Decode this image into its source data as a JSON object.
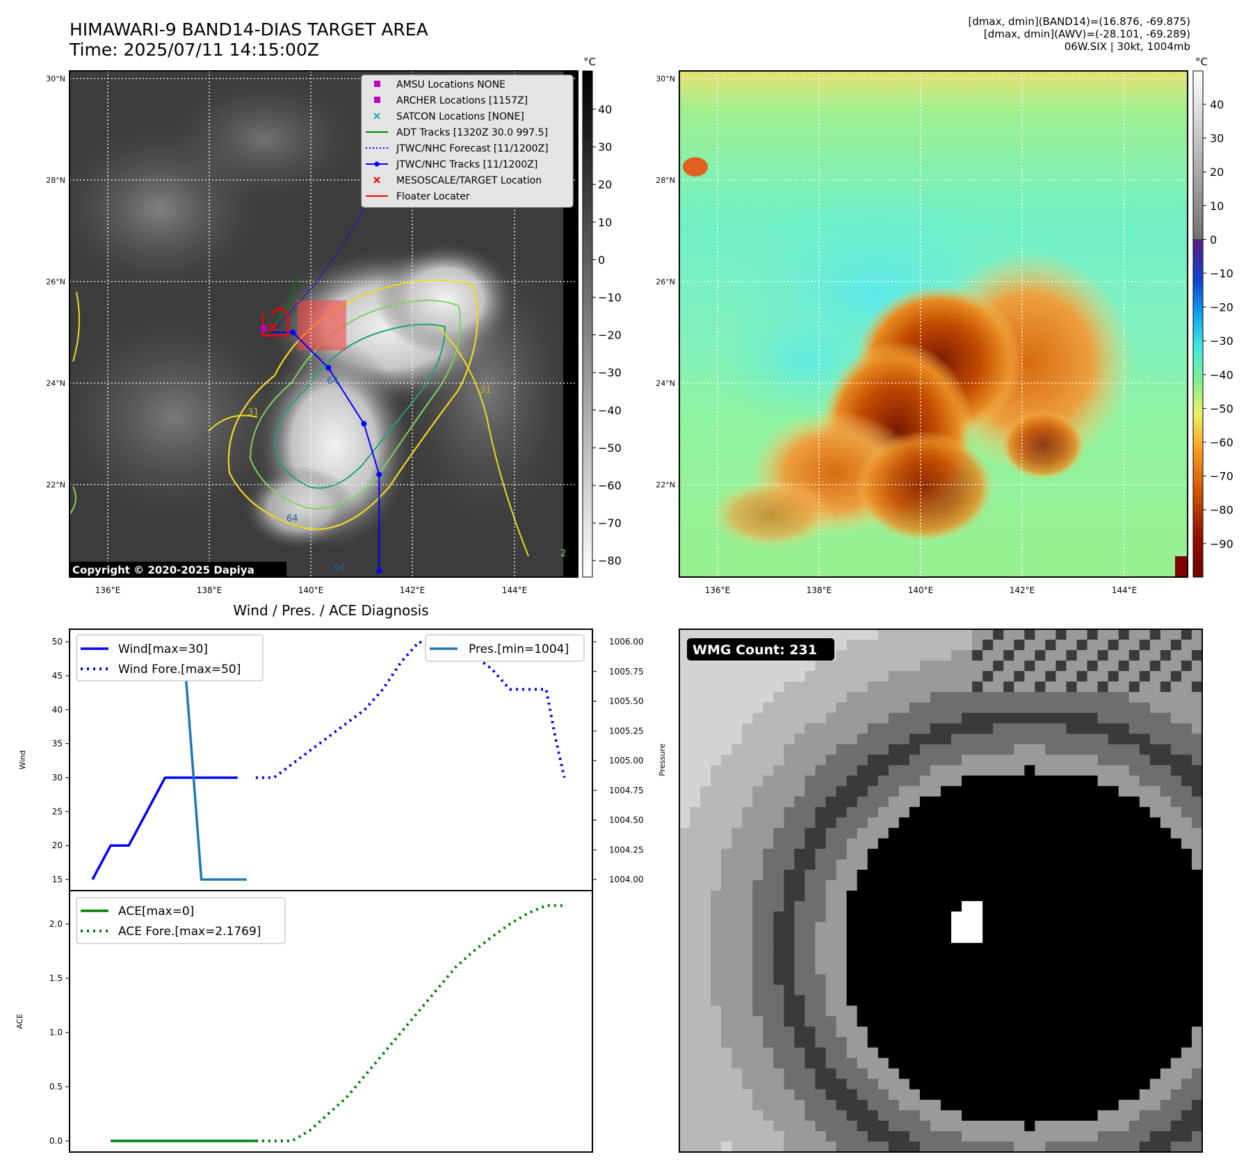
{
  "header": {
    "title_line1": "HIMAWARI-9 BAND14-DIAS TARGET AREA",
    "title_line2": "Time: 2025/07/11 14:15:00Z",
    "info_line1": "[dmax, dmin](BAND14)=(16.876, -69.875)",
    "info_line2": "[dmax, dmin](AWV)=(-28.101, -69.289)",
    "info_line3": "06W.SIX | 30kt, 1004mb"
  },
  "map": {
    "lon_ticks": [
      "136°E",
      "138°E",
      "140°E",
      "142°E",
      "144°E"
    ],
    "lat_ticks": [
      "30°N",
      "28°N",
      "26°N",
      "24°N",
      "22°N"
    ],
    "copyright": "Copyright © 2020-2025 Dapiya",
    "contour_labels": [
      "64",
      "31",
      "64",
      "31",
      "64",
      "2"
    ],
    "legend": [
      {
        "label": "AMSU Locations NONE",
        "color": "#c000c0",
        "marker": "square"
      },
      {
        "label": "ARCHER Locations [1157Z]",
        "color": "#c000c0",
        "marker": "square"
      },
      {
        "label": "SATCON Locations [NONE]",
        "color": "#20b0b0",
        "marker": "x"
      },
      {
        "label": "ADT Tracks [1320Z 30.0 997.5]",
        "color": "#008000",
        "marker": "line"
      },
      {
        "label": "JTWC/NHC Forecast [11/1200Z]",
        "color": "#0000ff",
        "marker": "dotted"
      },
      {
        "label": "JTWC/NHC Tracks [11/1200Z]",
        "color": "#0000ff",
        "marker": "line-dot"
      },
      {
        "label": "MESOSCALE/TARGET Location",
        "color": "#ff0000",
        "marker": "x"
      },
      {
        "label": "Floater Locater",
        "color": "#ff0000",
        "marker": "line"
      }
    ],
    "track_lonlat": [
      [
        140.4,
        25.0
      ],
      [
        141.1,
        24.3
      ],
      [
        141.8,
        23.2
      ],
      [
        142.1,
        22.2
      ],
      [
        142.1,
        20.3
      ]
    ],
    "forecast_lonlat": [
      [
        140.0,
        25.0
      ],
      [
        140.8,
        25.9
      ],
      [
        141.5,
        26.9
      ],
      [
        142.0,
        27.8
      ]
    ],
    "adt_lonlat": [
      [
        140.0,
        25.1
      ],
      [
        140.3,
        25.5
      ],
      [
        140.5,
        26.1
      ]
    ]
  },
  "colorbar_ir": {
    "unit": "°C",
    "ticks": [
      "40",
      "30",
      "20",
      "10",
      "0",
      "−10",
      "−20",
      "−30",
      "−40",
      "−50",
      "−60",
      "−70",
      "−80"
    ]
  },
  "colorbar_awv": {
    "unit": "°C",
    "ticks": [
      "40",
      "30",
      "20",
      "10",
      "0",
      "−10",
      "−20",
      "−30",
      "−40",
      "−50",
      "−60",
      "−70",
      "−80",
      "−90"
    ]
  },
  "diagnosis": {
    "title": "Wind / Pres. / ACE Diagnosis",
    "wind_ylabel": "Wind",
    "pres_ylabel": "Pressure",
    "ace_ylabel": "ACE",
    "wind_yticks": [
      "50",
      "45",
      "40",
      "35",
      "30",
      "25",
      "20",
      "15"
    ],
    "pres_yticks": [
      "1006.00",
      "1005.75",
      "1005.50",
      "1005.25",
      "1005.00",
      "1004.75",
      "1004.50",
      "1004.25",
      "1004.00"
    ],
    "ace_yticks": [
      "2.0",
      "1.5",
      "1.0",
      "0.5",
      "0.0"
    ],
    "legend_wind": "Wind[max=30]",
    "legend_wind_fore": "Wind Fore.[max=50]",
    "legend_pres": "Pres.[min=1004]",
    "legend_ace": "ACE[max=0]",
    "legend_ace_fore": "ACE Fore.[max=2.1769]"
  },
  "wmg": {
    "badge": "WMG Count: 231"
  },
  "chart_data": [
    {
      "type": "line",
      "name": "wind",
      "x": [
        0,
        1,
        2,
        3,
        4,
        5,
        6,
        7,
        8
      ],
      "values": [
        15,
        20,
        20,
        25,
        30,
        30,
        30,
        30,
        30
      ],
      "ylim": [
        14,
        51
      ]
    },
    {
      "type": "line",
      "name": "wind_forecast",
      "x": [
        9,
        10,
        11,
        12,
        13,
        14,
        15,
        16,
        17,
        18,
        19,
        20,
        21,
        22,
        23,
        24,
        25
      ],
      "values": [
        30,
        30,
        32,
        34,
        36,
        38,
        40,
        43,
        47,
        50,
        49,
        48,
        48,
        46,
        43,
        43,
        43
      ],
      "tail_x": [
        25,
        25.5,
        26
      ],
      "tail_values": [
        43,
        36,
        30
      ],
      "ylim": [
        14,
        51
      ]
    },
    {
      "type": "line",
      "name": "pressure",
      "x": [
        1,
        5,
        6,
        8.5
      ],
      "values": [
        1006.0,
        1006.0,
        1004.0,
        1004.0
      ],
      "ylim": [
        1003.93,
        1006.1
      ]
    },
    {
      "type": "line",
      "name": "ace",
      "x": [
        1,
        9
      ],
      "values": [
        0,
        0
      ],
      "ylim": [
        -0.05,
        2.3
      ]
    },
    {
      "type": "line",
      "name": "ace_forecast",
      "x": [
        9,
        11,
        12,
        13,
        14,
        15,
        16,
        17,
        18,
        19,
        20,
        21,
        22,
        23,
        24,
        25,
        26
      ],
      "values": [
        0,
        0,
        0.1,
        0.25,
        0.4,
        0.6,
        0.8,
        1.0,
        1.2,
        1.4,
        1.6,
        1.75,
        1.88,
        2.0,
        2.1,
        2.17,
        2.17
      ],
      "ylim": [
        -0.05,
        2.3
      ]
    }
  ]
}
